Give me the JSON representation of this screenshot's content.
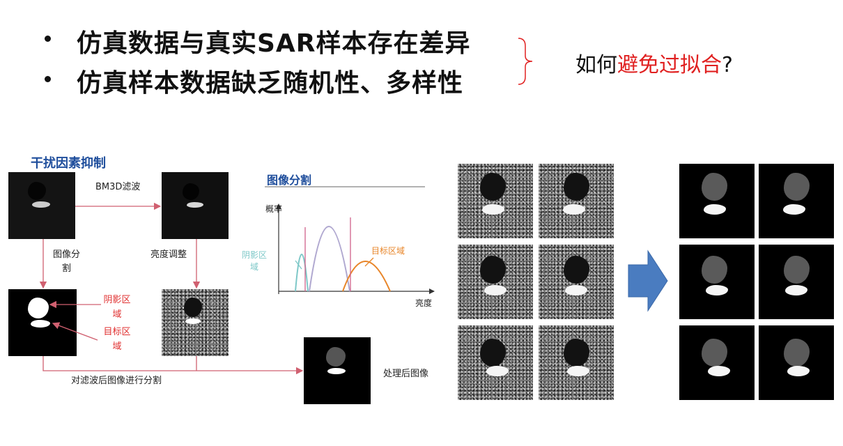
{
  "bullets": [
    "仿真数据与真实SAR样本存在差异",
    "仿真样本数据缺乏随机性、多样性"
  ],
  "question": {
    "prefix": "如何",
    "highlight": "避免过拟合",
    "suffix": "?"
  },
  "left_panel": {
    "title": "干扰因素抑制",
    "bm3d_label": "BM3D滤波",
    "segmentation_label_line1": "图像分",
    "segmentation_label_line2": "割",
    "brightness_label": "亮度调整",
    "shadow_region_line1": "阴影区",
    "shadow_region_line2": "域",
    "target_region_line1": "目标区",
    "target_region_line2": "域",
    "bottom_label": "对滤波后图像进行分割",
    "processed_label": "处理后图像"
  },
  "segmentation_chart": {
    "title": "图像分割",
    "ylabel": "概率",
    "xlabel": "亮度",
    "shadow_label_line1": "阴影区",
    "shadow_label_line2": "域",
    "target_label": "目标区域",
    "colors": {
      "shadow": "#7ec8c8",
      "middle": "#b0a8d0",
      "target": "#e8862a",
      "threshold": "#d0608a"
    }
  },
  "arrow_color": "#4a7cc0"
}
